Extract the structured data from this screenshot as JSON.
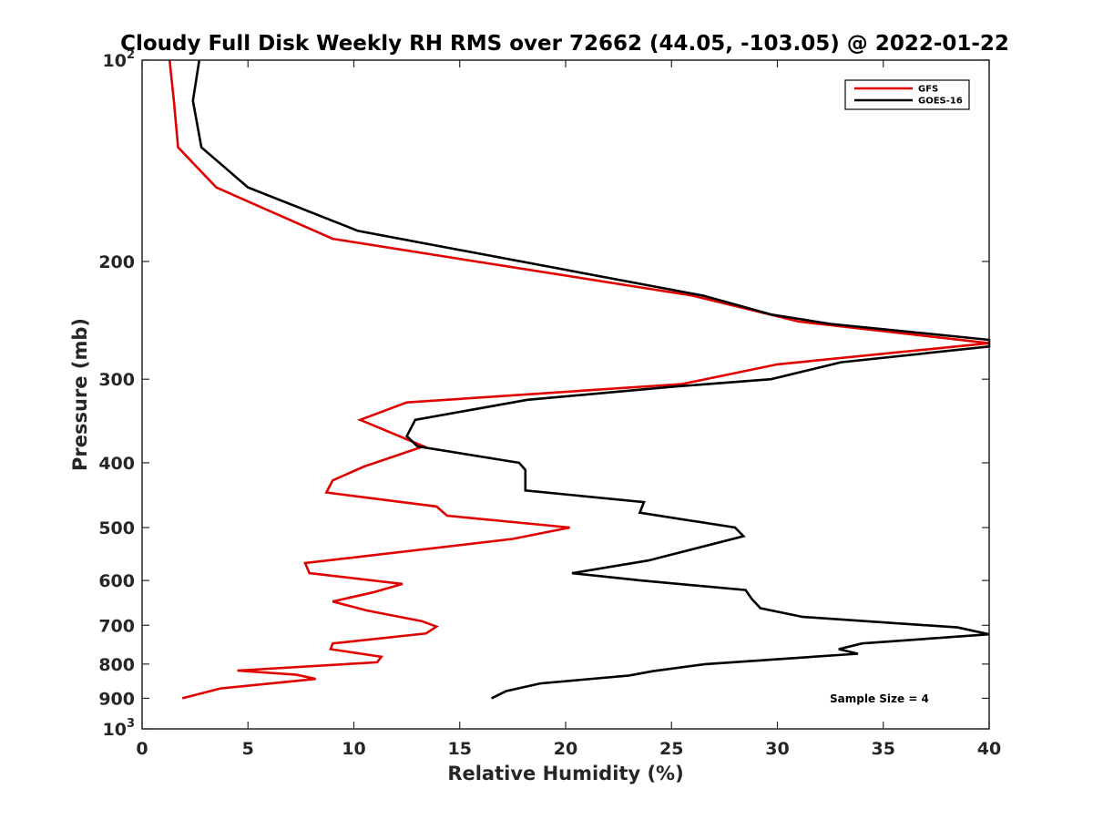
{
  "chart_data": {
    "type": "line",
    "title": "Cloudy Full Disk Weekly RH RMS over 72662 (44.05, -103.05) @ 2022-01-22",
    "xlabel": "Relative Humidity (%)",
    "ylabel": "Pressure (mb)",
    "xlim": [
      0,
      40
    ],
    "ylim": [
      100,
      1000
    ],
    "y_scale": "log",
    "y_reversed": true,
    "x_ticks": [
      "0",
      "5",
      "10",
      "15",
      "20",
      "25",
      "30",
      "35",
      "40"
    ],
    "y_ticks": [
      {
        "value": 100,
        "label": "10",
        "sup": "2"
      },
      {
        "value": 200,
        "label": "200",
        "sup": ""
      },
      {
        "value": 300,
        "label": "300",
        "sup": ""
      },
      {
        "value": 400,
        "label": "400",
        "sup": ""
      },
      {
        "value": 500,
        "label": "500",
        "sup": ""
      },
      {
        "value": 600,
        "label": "600",
        "sup": ""
      },
      {
        "value": 700,
        "label": "700",
        "sup": ""
      },
      {
        "value": 800,
        "label": "800",
        "sup": ""
      },
      {
        "value": 900,
        "label": "900",
        "sup": ""
      },
      {
        "value": 1000,
        "label": "10",
        "sup": "3"
      }
    ],
    "legend_position": "top-right",
    "annotation": "Sample Size = 4",
    "series": [
      {
        "name": "GFS",
        "color": "#e00000",
        "points": [
          [
            1.3,
            100
          ],
          [
            1.5,
            115
          ],
          [
            1.7,
            135
          ],
          [
            3.5,
            155
          ],
          [
            9,
            185
          ],
          [
            26,
            225
          ],
          [
            31,
            246
          ],
          [
            40,
            265
          ],
          [
            30,
            285
          ],
          [
            25.5,
            305
          ],
          [
            12.5,
            325
          ],
          [
            10.3,
            345
          ],
          [
            13.3,
            378
          ],
          [
            10.5,
            405
          ],
          [
            9,
            425
          ],
          [
            8.7,
            443
          ],
          [
            13.9,
            465
          ],
          [
            14.4,
            480
          ],
          [
            20.2,
            500
          ],
          [
            17.5,
            520
          ],
          [
            7.7,
            565
          ],
          [
            7.9,
            585
          ],
          [
            12.3,
            607
          ],
          [
            10.9,
            625
          ],
          [
            9,
            645
          ],
          [
            10.6,
            665
          ],
          [
            13.2,
            690
          ],
          [
            13.9,
            703
          ],
          [
            13.4,
            720
          ],
          [
            9,
            745
          ],
          [
            8.9,
            760
          ],
          [
            11.3,
            780
          ],
          [
            11.1,
            795
          ],
          [
            4.5,
            818
          ],
          [
            7.3,
            830
          ],
          [
            8.2,
            842
          ],
          [
            3.7,
            870
          ],
          [
            1.9,
            900
          ]
        ]
      },
      {
        "name": "GOES-16",
        "color": "#000000",
        "points": [
          [
            2.7,
            100
          ],
          [
            2.4,
            115
          ],
          [
            2.8,
            135
          ],
          [
            5,
            155
          ],
          [
            10.2,
            180
          ],
          [
            26.5,
            225
          ],
          [
            29.7,
            240
          ],
          [
            32.5,
            248
          ],
          [
            40,
            262
          ],
          [
            40,
            268
          ],
          [
            33,
            283
          ],
          [
            29.7,
            300
          ],
          [
            25,
            308
          ],
          [
            18.2,
            322
          ],
          [
            12.9,
            345
          ],
          [
            12.5,
            365
          ],
          [
            13,
            378
          ],
          [
            17.8,
            400
          ],
          [
            18.1,
            410
          ],
          [
            18.1,
            440
          ],
          [
            23.7,
            458
          ],
          [
            23.5,
            475
          ],
          [
            28,
            500
          ],
          [
            28.4,
            515
          ],
          [
            23.9,
            560
          ],
          [
            20.3,
            585
          ],
          [
            23.6,
            600
          ],
          [
            28.5,
            620
          ],
          [
            28.8,
            640
          ],
          [
            29.2,
            660
          ],
          [
            31.2,
            680
          ],
          [
            38.5,
            705
          ],
          [
            40,
            722
          ],
          [
            34,
            745
          ],
          [
            32.9,
            760
          ],
          [
            33.8,
            772
          ],
          [
            26.6,
            800
          ],
          [
            24.1,
            820
          ],
          [
            23,
            832
          ],
          [
            18.8,
            855
          ],
          [
            17.2,
            878
          ],
          [
            16.5,
            900
          ]
        ]
      }
    ]
  }
}
